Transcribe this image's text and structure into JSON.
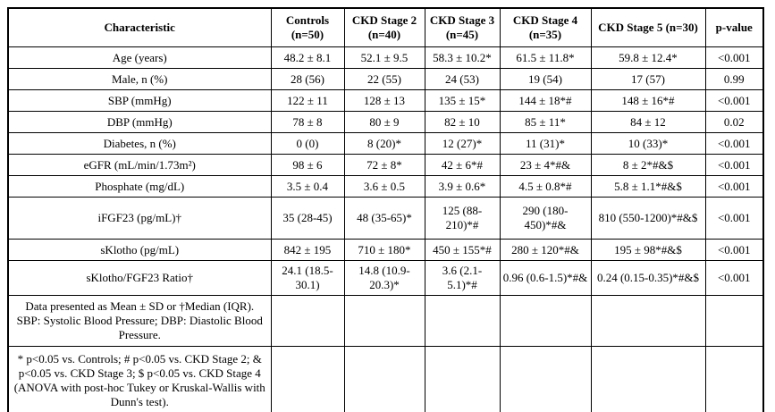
{
  "page": {
    "background": "#ffffff",
    "border_color": "#000000",
    "text_color": "#000000"
  },
  "table": {
    "columns": [
      "Characteristic",
      "Controls (n=50)",
      "CKD Stage 2 (n=40)",
      "CKD Stage 3 (n=45)",
      "CKD Stage 4 (n=35)",
      "CKD Stage 5 (n=30)",
      "p-value"
    ],
    "rows": [
      {
        "characteristic": "Age (years)",
        "values": [
          "48.2 ± 8.1",
          "52.1 ± 9.5",
          "58.3 ± 10.2*",
          "61.5 ± 11.8*",
          "59.8 ± 12.4*"
        ],
        "p_value": "<0.001"
      },
      {
        "characteristic": "Male, n (%)",
        "values": [
          "28 (56)",
          "22 (55)",
          "24 (53)",
          "19 (54)",
          "17 (57)"
        ],
        "p_value": "0.99"
      },
      {
        "characteristic": "SBP (mmHg)",
        "values": [
          "122 ± 11",
          "128 ± 13",
          "135 ± 15*",
          "144 ± 18*#",
          "148 ± 16*#"
        ],
        "p_value": "<0.001"
      },
      {
        "characteristic": "DBP (mmHg)",
        "values": [
          "78 ± 8",
          "80 ± 9",
          "82 ± 10",
          "85 ± 11*",
          "84 ± 12"
        ],
        "p_value": "0.02"
      },
      {
        "characteristic": "Diabetes, n (%)",
        "values": [
          "0 (0)",
          "8 (20)*",
          "12 (27)*",
          "11 (31)*",
          "10 (33)*"
        ],
        "p_value": "<0.001"
      },
      {
        "characteristic": "eGFR (mL/min/1.73m²)",
        "values": [
          "98 ± 6",
          "72 ± 8*",
          "42 ± 6*#",
          "23 ± 4*#&",
          "8 ± 2*#&$"
        ],
        "p_value": "<0.001"
      },
      {
        "characteristic": "Phosphate (mg/dL)",
        "values": [
          "3.5 ± 0.4",
          "3.6 ± 0.5",
          "3.9 ± 0.6*",
          "4.5 ± 0.8*#",
          "5.8 ± 1.1*#&$"
        ],
        "p_value": "<0.001"
      },
      {
        "characteristic": "iFGF23 (pg/mL)†",
        "values": [
          "35 (28-45)",
          "48 (35-65)*",
          "125 (88-210)*#",
          "290 (180-450)*#&",
          "810 (550-1200)*#&$"
        ],
        "p_value": "<0.001"
      },
      {
        "characteristic": "sKlotho (pg/mL)",
        "values": [
          "842 ± 195",
          "710 ± 180*",
          "450 ± 155*#",
          "280 ± 120*#&",
          "195 ± 98*#&$"
        ],
        "p_value": "<0.001"
      },
      {
        "characteristic": "sKlotho/FGF23 Ratio†",
        "values": [
          "24.1 (18.5-30.1)",
          "14.8 (10.9-20.3)*",
          "3.6 (2.1-5.1)*#",
          "0.96 (0.6-1.5)*#&",
          "0.24 (0.15-0.35)*#&$"
        ],
        "p_value": "<0.001"
      }
    ],
    "footnotes": [
      "Data presented as Mean ± SD or †Median (IQR). SBP: Systolic Blood Pressure; DBP: Diastolic Blood Pressure.",
      "* p<0.05 vs. Controls; # p<0.05 vs. CKD Stage 2; & p<0.05 vs. CKD Stage 3; $ p<0.05 vs. CKD Stage 4 (ANOVA with post-hoc Tukey or Kruskal-Wallis with Dunn's test)."
    ]
  }
}
